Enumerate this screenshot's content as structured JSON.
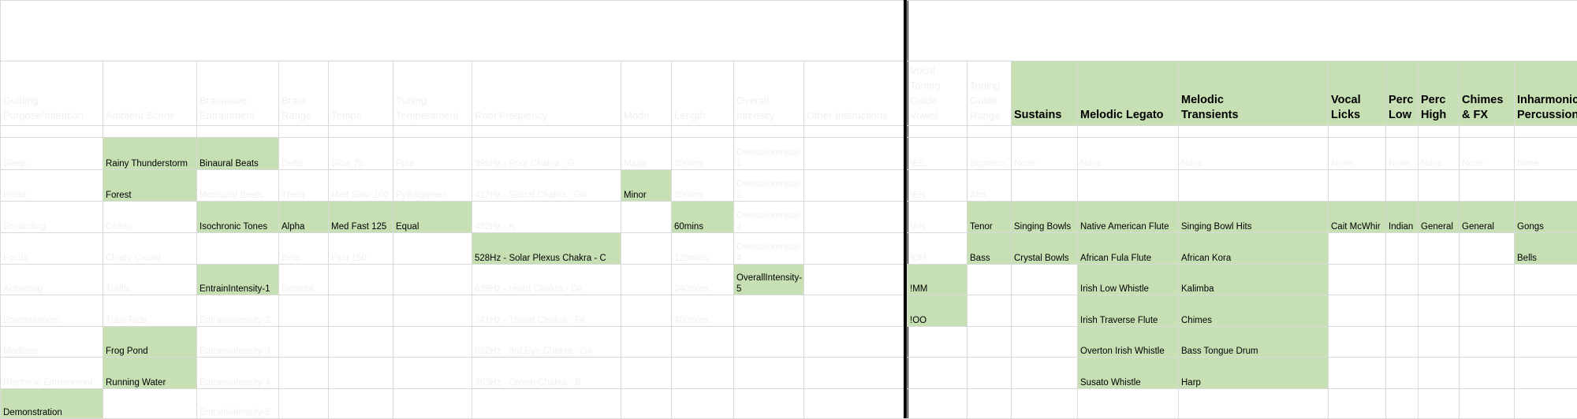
{
  "left_headers": [
    "Guiding Purpose/Intention",
    "Ambient Scene",
    "Brainwave Entrainment",
    "Brain Range",
    "Tempo",
    "Tuning Temperament",
    "Root Frequency",
    "Mode",
    "Length",
    "Overall Intensity",
    "Other Instructions"
  ],
  "right_headers": [
    "Vocal Toning Guide Vowel",
    "Toning Guide Range",
    "Sustains",
    "Melodic Legato",
    "Melodic Transients",
    "Vocal Licks",
    "Perc Low",
    "Perc High",
    "Chimes & FX",
    "Inharmonic Percussion"
  ],
  "left_rows": [
    [
      "Sleep",
      "Rainy Thunderstorm",
      "Binaural Beats",
      "Delta",
      "Slow 75",
      "Pure",
      "396Hz - Root Chakra - G",
      "Major",
      "30mins",
      "OverallIntensity-1",
      ""
    ],
    [
      "Relax",
      "Forest",
      "Monaural Beats",
      "Theta",
      "Med Slow 100",
      "Pythagorean",
      "417Hz - Sacral Chakra - G#",
      "Minor",
      "30mins",
      "OverallIntensity-2",
      ""
    ],
    [
      "Grounding",
      "Ocean",
      "Isochronic Tones",
      "Alpha",
      "Med Fast 125",
      "Equal",
      "432Hz - A",
      "",
      "60mins",
      "OverallIntensity-3",
      ""
    ],
    [
      "Focus",
      "Chatty Crowd",
      "",
      "Beta",
      "Fast 150",
      "",
      "528Hz - Solar Plexus Chakra - C",
      "",
      "120mins",
      "OverallIntensity-4",
      ""
    ],
    [
      "Activating",
      "Traffic",
      "EntrainIntensity-1",
      "Gamma",
      "",
      "",
      "639Hz - Heart Chakra - D#",
      "",
      "240mins",
      "OverallIntensity-5",
      ""
    ],
    [
      "Entertainment",
      "Train Ride",
      "EntrainIntensity-2",
      "",
      "",
      "",
      "741Hz - Throat Chakra - F#",
      "",
      "480mins",
      "",
      ""
    ],
    [
      "Meditate",
      "Frog Pond",
      "EntrainIntensity-3",
      "",
      "",
      "",
      "852Hz - 3rd Eye Chakra - G#",
      "",
      "",
      "",
      ""
    ],
    [
      "Rhythmic Entrainment",
      "Running Water",
      "EntrainIntensity-4",
      "",
      "",
      "",
      "963Hz - Crown Chakra - B",
      "",
      "",
      "",
      ""
    ],
    [
      "Demonstration",
      "",
      "EntrainIntensity-5",
      "",
      "",
      "",
      "",
      "",
      "",
      "",
      ""
    ]
  ],
  "right_rows": [
    [
      "!EE",
      "Soprano",
      "None",
      "None",
      "None",
      "None",
      "None",
      "None",
      "None",
      "None"
    ],
    [
      "!EH",
      "Alto",
      "",
      "",
      "",
      "",
      "",
      "",
      "",
      ""
    ],
    [
      "!AH",
      "Tenor",
      "Singing Bowls",
      "Native American Flute",
      "Singing Bowl Hits",
      "Cait McWhir",
      "Indian",
      "General",
      "General",
      "Gongs"
    ],
    [
      "!OH",
      "Bass",
      "Crystal Bowls",
      "African Fula Flute",
      "African Kora",
      "",
      "",
      "",
      "",
      "Bells"
    ],
    [
      "!MM",
      "",
      "",
      "Irish Low Whistle",
      "Kalimba",
      "",
      "",
      "",
      "",
      ""
    ],
    [
      "!OO",
      "",
      "",
      "Irish Traverse Flute",
      "Chimes",
      "",
      "",
      "",
      "",
      ""
    ],
    [
      "",
      "",
      "",
      "Overton Irish Whistle",
      "Bass Tongue Drum",
      "",
      "",
      "",
      "",
      ""
    ],
    [
      "",
      "",
      "",
      "Susato Whistle",
      "Harp",
      "",
      "",
      "",
      "",
      ""
    ],
    [
      "",
      "",
      "",
      "",
      "",
      "",
      "",
      "",
      "",
      ""
    ]
  ],
  "colors": {
    "highlight_fill": "#c6e0b4",
    "grid_line": "#d9d9d9",
    "faint_text": "#f0f0f0",
    "dark_text": "#000000",
    "divider": "#000000"
  }
}
